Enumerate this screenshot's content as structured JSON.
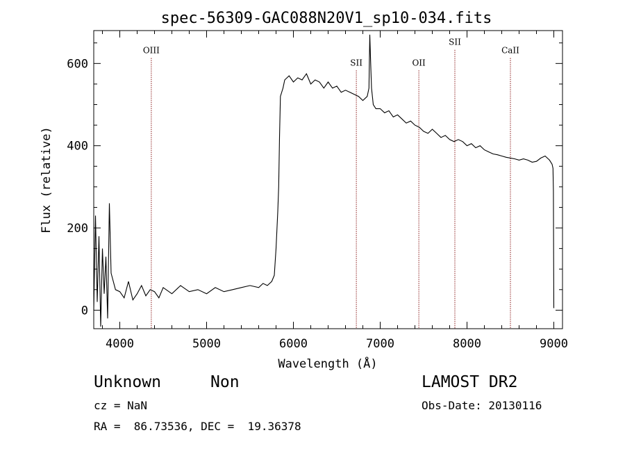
{
  "chart_data": {
    "type": "line",
    "title": "spec-56309-GAC088N20V1_sp10-034.fits",
    "xlabel": "Wavelength (Å)",
    "ylabel": "Flux (relative)",
    "xlim": [
      3700,
      9100
    ],
    "ylim": [
      -45,
      680
    ],
    "x_ticks": [
      4000,
      5000,
      6000,
      7000,
      8000,
      9000
    ],
    "y_ticks": [
      0,
      200,
      400,
      600
    ],
    "grid": false,
    "series": [
      {
        "x": [
          3700,
          3720,
          3740,
          3760,
          3780,
          3800,
          3820,
          3840,
          3860,
          3880,
          3900,
          3950,
          4000,
          4050,
          4100,
          4150,
          4200,
          4250,
          4300,
          4350,
          4400,
          4450,
          4500,
          4600,
          4700,
          4800,
          4900,
          5000,
          5100,
          5200,
          5300,
          5400,
          5500,
          5600,
          5650,
          5700,
          5750,
          5780,
          5800,
          5820,
          5830,
          5840,
          5850,
          5880,
          5900,
          5950,
          6000,
          6050,
          6100,
          6150,
          6200,
          6250,
          6300,
          6350,
          6400,
          6450,
          6500,
          6550,
          6600,
          6650,
          6700,
          6750,
          6800,
          6850,
          6870,
          6880,
          6890,
          6900,
          6920,
          6950,
          7000,
          7050,
          7100,
          7150,
          7200,
          7250,
          7300,
          7350,
          7400,
          7450,
          7500,
          7550,
          7600,
          7650,
          7700,
          7750,
          7800,
          7850,
          7900,
          7950,
          8000,
          8050,
          8100,
          8150,
          8200,
          8250,
          8300,
          8350,
          8400,
          8450,
          8500,
          8550,
          8600,
          8650,
          8700,
          8750,
          8800,
          8850,
          8900,
          8950,
          8980,
          8990,
          8995,
          9000
        ],
        "y": [
          0,
          230,
          20,
          180,
          -40,
          150,
          40,
          130,
          -20,
          260,
          90,
          50,
          45,
          30,
          70,
          25,
          40,
          60,
          35,
          50,
          45,
          30,
          55,
          40,
          60,
          45,
          50,
          40,
          55,
          45,
          50,
          55,
          60,
          55,
          65,
          60,
          70,
          85,
          150,
          240,
          300,
          420,
          520,
          540,
          560,
          570,
          555,
          565,
          560,
          575,
          550,
          560,
          555,
          540,
          555,
          540,
          545,
          530,
          535,
          530,
          525,
          520,
          510,
          520,
          540,
          670,
          600,
          540,
          500,
          490,
          490,
          480,
          485,
          470,
          475,
          465,
          455,
          460,
          450,
          445,
          435,
          430,
          440,
          430,
          420,
          425,
          415,
          410,
          415,
          410,
          400,
          405,
          395,
          400,
          390,
          385,
          380,
          378,
          375,
          372,
          370,
          368,
          365,
          368,
          365,
          360,
          362,
          370,
          375,
          365,
          355,
          345,
          290,
          5
        ]
      }
    ],
    "annotations": [
      {
        "label": "OIII",
        "x": 4363,
        "label_y": 625
      },
      {
        "label": "SII",
        "x": 6725,
        "label_y": 595
      },
      {
        "label": "OII",
        "x": 7445,
        "label_y": 595
      },
      {
        "label": "SII",
        "x": 7860,
        "label_y": 645
      },
      {
        "label": "CaII",
        "x": 8500,
        "label_y": 625
      }
    ]
  },
  "info": {
    "class_text": "Unknown",
    "subclass_text": "Non",
    "survey_text": "LAMOST DR2",
    "cz_text": "cz = NaN",
    "obs_date_text": "Obs-Date: 20130116",
    "radec_text": "RA =  86.73536, DEC =  19.36378"
  }
}
